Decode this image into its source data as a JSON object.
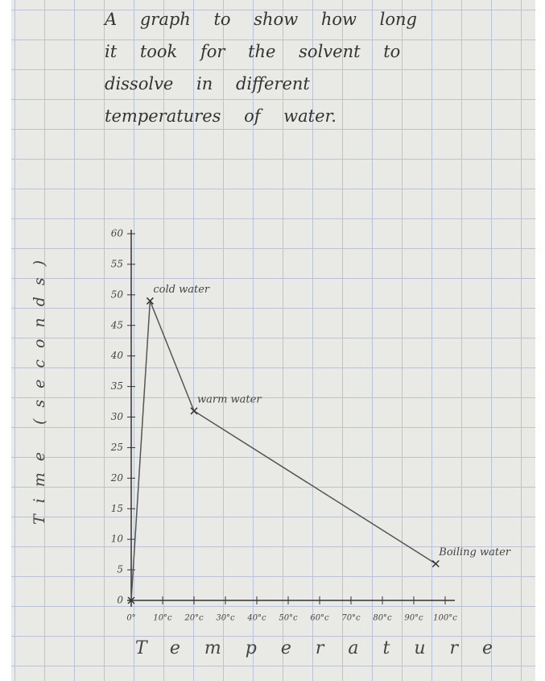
{
  "chart_data": {
    "type": "line",
    "title": "A graph to show how long it took for the solvent to dissolve in different temperatures of water.",
    "x_label": "Temperature",
    "y_label": "Time (seconds)",
    "series": [
      {
        "name": null,
        "color": "#555555",
        "x": [
          0,
          6,
          20,
          97
        ],
        "values": [
          0,
          49,
          31,
          6
        ],
        "point_labels": [
          null,
          "cold water",
          "warm water",
          "Boiling water"
        ]
      }
    ],
    "xlim": [
      0,
      100
    ],
    "xticks": [
      {
        "value": 0,
        "label": "0°"
      },
      {
        "value": 10,
        "label": "10°c"
      },
      {
        "value": 20,
        "label": "20°c"
      },
      {
        "value": 30,
        "label": "30°c"
      },
      {
        "value": 40,
        "label": "40°c"
      },
      {
        "value": 50,
        "label": "50°c"
      },
      {
        "value": 60,
        "label": "60°c"
      },
      {
        "value": 70,
        "label": "70°c"
      },
      {
        "value": 80,
        "label": "80°c"
      },
      {
        "value": 90,
        "label": "90°c"
      },
      {
        "value": 100,
        "label": "100°c"
      }
    ],
    "ylim": [
      0,
      60
    ],
    "yticks": [
      0,
      5,
      10,
      15,
      20,
      25,
      30,
      35,
      40,
      45,
      50,
      55,
      60
    ]
  }
}
